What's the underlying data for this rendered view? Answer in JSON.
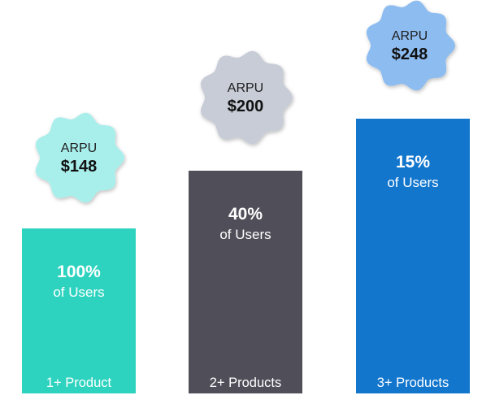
{
  "chart_data": {
    "type": "bar",
    "categories": [
      "1+ Product",
      "2+ Products",
      "3+ Products"
    ],
    "values": [
      100,
      40,
      15
    ],
    "value_labels": [
      "100%",
      "40%",
      "15%"
    ],
    "value_sublabel": "of Users",
    "arpu": {
      "label": "ARPU",
      "values": [
        148,
        200,
        248
      ],
      "value_labels": [
        "$148",
        "$200",
        "$248"
      ]
    },
    "colors": {
      "bars": [
        "#2ed3bf",
        "#504e58",
        "#1276cd"
      ],
      "badges": [
        "#a8eeeb",
        "#c7ccd6",
        "#8dbcf0"
      ]
    },
    "title": "",
    "xlabel": "",
    "ylabel": ""
  }
}
